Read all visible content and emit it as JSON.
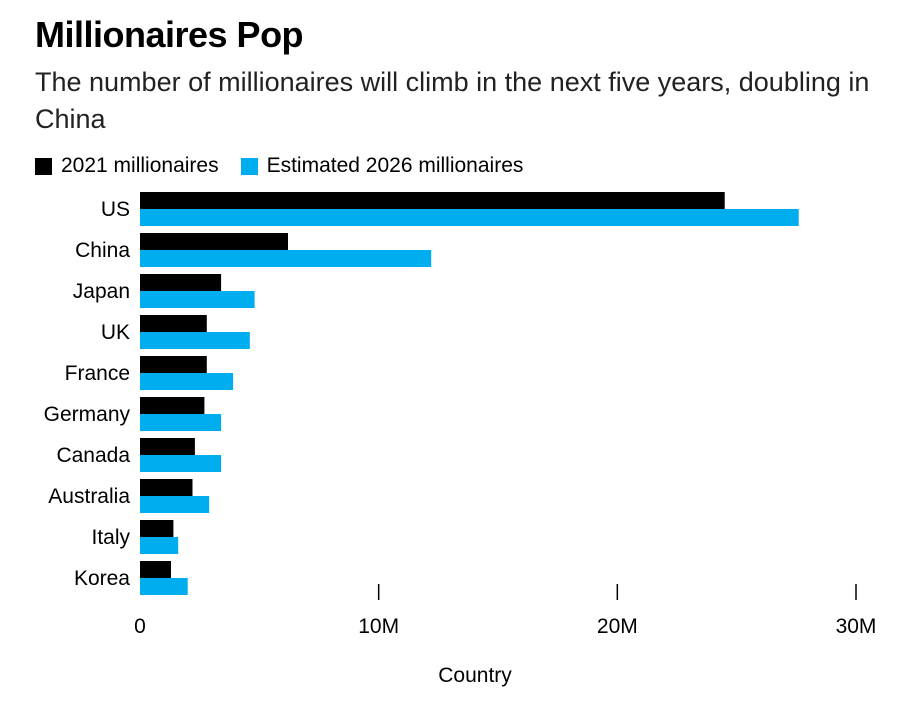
{
  "chart_data": {
    "type": "bar",
    "orientation": "horizontal",
    "title": "Millionaires Pop",
    "subtitle": "The number of millionaires will climb in the next five years, doubling in China",
    "categories": [
      "US",
      "China",
      "Japan",
      "UK",
      "France",
      "Germany",
      "Canada",
      "Australia",
      "Italy",
      "Korea"
    ],
    "series": [
      {
        "name": "2021 millionaires",
        "color": "#000000",
        "values": [
          24.5,
          6.2,
          3.4,
          2.8,
          2.8,
          2.7,
          2.3,
          2.2,
          1.4,
          1.3
        ]
      },
      {
        "name": "Estimated 2026 millionaires",
        "color": "#00aeef",
        "values": [
          27.6,
          12.2,
          4.8,
          4.6,
          3.9,
          3.4,
          3.4,
          2.9,
          1.6,
          2.0
        ]
      }
    ],
    "xlim": [
      0,
      30
    ],
    "xticks": [
      {
        "value": 0,
        "label": "0"
      },
      {
        "value": 10,
        "label": "10M"
      },
      {
        "value": 20,
        "label": "20M"
      },
      {
        "value": 30,
        "label": "30M"
      }
    ],
    "xlabel": "Country",
    "ylabel": "",
    "legend_position": "top-left",
    "grid": false
  }
}
